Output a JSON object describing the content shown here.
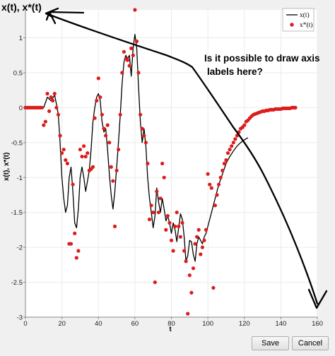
{
  "window": {
    "corner_title": "x(t), x*(t)",
    "save_label": "Save",
    "cancel_label": "Cancel"
  },
  "annotation": {
    "line1": "Is it possible to draw axis",
    "line2": "labels here?"
  },
  "colors": {
    "line": "#000000",
    "dots": "#dd1c1c",
    "annotation": "#000000",
    "plot_bg": "#ffffff",
    "grid": "#ebebeb"
  },
  "chart_data": {
    "type": "scatter",
    "xlabel": "t",
    "ylabel": "x(t), x*(t)",
    "xlim": [
      0,
      160
    ],
    "ylim": [
      -3,
      1.4
    ],
    "xticks": [
      0,
      20,
      40,
      60,
      80,
      100,
      120,
      140,
      160
    ],
    "yticks": [
      1,
      0.5,
      0,
      -0.5,
      -1,
      -1.5,
      -2,
      -2.5,
      -3
    ],
    "xtick_labels": [
      "0",
      "20",
      "40",
      "60",
      "80",
      "100",
      "120",
      "140",
      "160"
    ],
    "ytick_labels": [
      "1",
      "0.5",
      "0",
      "-0.5",
      "-1",
      "-1.5",
      "-2",
      "-2.5",
      "-3"
    ],
    "grid": true,
    "legend_position": "top-right",
    "series": [
      {
        "name": "x(t)",
        "style": "line",
        "points": [
          [
            0,
            0
          ],
          [
            10,
            0
          ],
          [
            12,
            0.15
          ],
          [
            14,
            0.1
          ],
          [
            16,
            0.18
          ],
          [
            17,
            0.05
          ],
          [
            18,
            -0.1
          ],
          [
            19,
            -0.5
          ],
          [
            20,
            -1.0
          ],
          [
            21,
            -1.3
          ],
          [
            22,
            -1.5
          ],
          [
            23,
            -1.4
          ],
          [
            24,
            -1.0
          ],
          [
            25,
            -0.85
          ],
          [
            26,
            -1.2
          ],
          [
            27,
            -1.65
          ],
          [
            28,
            -1.72
          ],
          [
            29,
            -1.45
          ],
          [
            30,
            -1.0
          ],
          [
            31,
            -0.85
          ],
          [
            32,
            -1.0
          ],
          [
            33,
            -1.2
          ],
          [
            34,
            -1.05
          ],
          [
            35,
            -0.9
          ],
          [
            36,
            -0.6
          ],
          [
            37,
            -0.2
          ],
          [
            38,
            0.0
          ],
          [
            39,
            0.15
          ],
          [
            40,
            0.2
          ],
          [
            41,
            0.1
          ],
          [
            42,
            -0.2
          ],
          [
            43,
            -0.35
          ],
          [
            44,
            -0.3
          ],
          [
            45,
            -0.6
          ],
          [
            46,
            -0.95
          ],
          [
            47,
            -1.25
          ],
          [
            48,
            -1.45
          ],
          [
            49,
            -1.2
          ],
          [
            50,
            -0.85
          ],
          [
            51,
            -0.5
          ],
          [
            52,
            -0.1
          ],
          [
            53,
            0.35
          ],
          [
            54,
            0.65
          ],
          [
            55,
            0.75
          ],
          [
            56,
            0.7
          ],
          [
            57,
            0.75
          ],
          [
            58,
            0.45
          ],
          [
            59,
            0.85
          ],
          [
            60,
            1.05
          ],
          [
            61,
            0.85
          ],
          [
            62,
            0.3
          ],
          [
            63,
            -0.2
          ],
          [
            64,
            -0.5
          ],
          [
            65,
            -0.3
          ],
          [
            66,
            -0.55
          ],
          [
            67,
            -1.0
          ],
          [
            68,
            -1.3
          ],
          [
            69,
            -1.5
          ],
          [
            70,
            -1.72
          ],
          [
            71,
            -1.55
          ],
          [
            72,
            -1.15
          ],
          [
            73,
            -1.35
          ],
          [
            74,
            -1.5
          ],
          [
            75,
            -1.3
          ],
          [
            76,
            -1.45
          ],
          [
            77,
            -1.62
          ],
          [
            78,
            -1.55
          ],
          [
            79,
            -1.65
          ],
          [
            80,
            -1.8
          ],
          [
            81,
            -1.65
          ],
          [
            82,
            -1.75
          ],
          [
            83,
            -1.92
          ],
          [
            84,
            -1.72
          ],
          [
            85,
            -1.52
          ],
          [
            86,
            -1.6
          ],
          [
            87,
            -1.85
          ],
          [
            88,
            -2.2
          ],
          [
            89,
            -2.12
          ],
          [
            90,
            -1.9
          ],
          [
            91,
            -1.92
          ],
          [
            92,
            -2.1
          ],
          [
            93,
            -2.2
          ],
          [
            94,
            -1.95
          ],
          [
            95,
            -1.85
          ],
          [
            96,
            -1.9
          ],
          [
            97,
            -1.95
          ],
          [
            98,
            -1.85
          ],
          [
            99,
            -1.8
          ],
          [
            100,
            -1.7
          ],
          [
            102,
            -1.5
          ],
          [
            104,
            -1.3
          ],
          [
            106,
            -1.1
          ],
          [
            108,
            -0.95
          ],
          [
            110,
            -0.8
          ],
          [
            112,
            -0.7
          ],
          [
            114,
            -0.62
          ],
          [
            116,
            -0.55
          ],
          [
            118,
            -0.5
          ],
          [
            120,
            -0.46
          ],
          [
            122,
            -0.43
          ]
        ]
      },
      {
        "name": "x*(t)",
        "style": "dots",
        "points": [
          [
            0,
            0
          ],
          [
            1,
            0
          ],
          [
            2,
            0
          ],
          [
            3,
            0
          ],
          [
            4,
            0
          ],
          [
            5,
            0
          ],
          [
            6,
            0
          ],
          [
            7,
            0
          ],
          [
            8,
            0
          ],
          [
            9,
            0
          ],
          [
            10,
            -0.25
          ],
          [
            11,
            -0.2
          ],
          [
            12,
            0.2
          ],
          [
            13,
            -0.05
          ],
          [
            14,
            0.15
          ],
          [
            15,
            0.1
          ],
          [
            16,
            0.2
          ],
          [
            17,
            0.0
          ],
          [
            18,
            -0.1
          ],
          [
            19,
            -0.4
          ],
          [
            20,
            -0.65
          ],
          [
            21,
            -0.6
          ],
          [
            22,
            -0.75
          ],
          [
            23,
            -0.8
          ],
          [
            24,
            -1.95
          ],
          [
            25,
            -1.95
          ],
          [
            26,
            -1.1
          ],
          [
            27,
            -1.8
          ],
          [
            28,
            -2.15
          ],
          [
            29,
            -2.05
          ],
          [
            30,
            -0.6
          ],
          [
            31,
            -0.7
          ],
          [
            32,
            -0.55
          ],
          [
            33,
            -0.7
          ],
          [
            34,
            -0.65
          ],
          [
            35,
            -0.9
          ],
          [
            36,
            -0.88
          ],
          [
            37,
            -0.85
          ],
          [
            38,
            -0.15
          ],
          [
            39,
            0.1
          ],
          [
            40,
            0.42
          ],
          [
            41,
            0.15
          ],
          [
            42,
            -0.1
          ],
          [
            43,
            -0.3
          ],
          [
            44,
            -0.4
          ],
          [
            45,
            -0.25
          ],
          [
            46,
            -0.5
          ],
          [
            47,
            -0.85
          ],
          [
            48,
            -1.05
          ],
          [
            49,
            -1.7
          ],
          [
            50,
            -0.9
          ],
          [
            51,
            -0.6
          ],
          [
            52,
            -0.1
          ],
          [
            53,
            0.5
          ],
          [
            54,
            0.8
          ],
          [
            55,
            0.7
          ],
          [
            56,
            0.68
          ],
          [
            57,
            0.6
          ],
          [
            58,
            0.85
          ],
          [
            59,
            0.75
          ],
          [
            60,
            1.4
          ],
          [
            61,
            0.95
          ],
          [
            62,
            0.5
          ],
          [
            63,
            -0.1
          ],
          [
            64,
            -0.3
          ],
          [
            65,
            -0.4
          ],
          [
            66,
            -0.5
          ],
          [
            67,
            -0.8
          ],
          [
            68,
            -1.6
          ],
          [
            69,
            -1.4
          ],
          [
            70,
            -1.5
          ],
          [
            71,
            -2.5
          ],
          [
            72,
            -1.2
          ],
          [
            73,
            -1.5
          ],
          [
            74,
            -1.3
          ],
          [
            75,
            -0.8
          ],
          [
            76,
            -1.0
          ],
          [
            77,
            -1.75
          ],
          [
            78,
            -1.55
          ],
          [
            79,
            -1.65
          ],
          [
            80,
            -1.9
          ],
          [
            81,
            -2.05
          ],
          [
            82,
            -1.7
          ],
          [
            83,
            -1.5
          ],
          [
            84,
            -1.7
          ],
          [
            85,
            -1.85
          ],
          [
            86,
            -1.65
          ],
          [
            87,
            -2.05
          ],
          [
            88,
            -2.2
          ],
          [
            89,
            -2.95
          ],
          [
            90,
            -2.4
          ],
          [
            91,
            -2.65
          ],
          [
            92,
            -2.3
          ],
          [
            93,
            -1.95
          ],
          [
            94,
            -1.85
          ],
          [
            95,
            -1.75
          ],
          [
            96,
            -2.1
          ],
          [
            97,
            -2.0
          ],
          [
            98,
            -1.9
          ],
          [
            99,
            -1.75
          ],
          [
            100,
            -0.95
          ],
          [
            101,
            -1.1
          ],
          [
            102,
            -1.15
          ],
          [
            103,
            -2.58
          ],
          [
            104,
            -1.4
          ],
          [
            105,
            -1.25
          ],
          [
            106,
            -1.1
          ],
          [
            107,
            -1.0
          ],
          [
            108,
            -0.9
          ],
          [
            109,
            -0.8
          ],
          [
            110,
            -0.75
          ],
          [
            111,
            -0.65
          ],
          [
            112,
            -0.6
          ],
          [
            113,
            -0.55
          ],
          [
            114,
            -0.5
          ],
          [
            115,
            -0.45
          ],
          [
            116,
            -0.4
          ],
          [
            117,
            -0.35
          ],
          [
            118,
            -0.3
          ],
          [
            119,
            -0.28
          ],
          [
            120,
            -0.25
          ],
          [
            121,
            -0.2
          ],
          [
            122,
            -0.18
          ],
          [
            123,
            -0.15
          ],
          [
            124,
            -0.12
          ],
          [
            125,
            -0.1
          ],
          [
            126,
            -0.09
          ],
          [
            127,
            -0.08
          ],
          [
            128,
            -0.07
          ],
          [
            129,
            -0.06
          ],
          [
            130,
            -0.05
          ],
          [
            131,
            -0.05
          ],
          [
            132,
            -0.04
          ],
          [
            133,
            -0.04
          ],
          [
            134,
            -0.03
          ],
          [
            135,
            -0.03
          ],
          [
            136,
            -0.03
          ],
          [
            137,
            -0.02
          ],
          [
            138,
            -0.02
          ],
          [
            139,
            -0.02
          ],
          [
            140,
            -0.02
          ],
          [
            141,
            -0.01
          ],
          [
            142,
            -0.01
          ],
          [
            143,
            -0.01
          ],
          [
            144,
            -0.01
          ],
          [
            145,
            -0.01
          ],
          [
            146,
            0.0
          ],
          [
            147,
            0.0
          ],
          [
            148,
            0.0
          ]
        ]
      }
    ]
  }
}
